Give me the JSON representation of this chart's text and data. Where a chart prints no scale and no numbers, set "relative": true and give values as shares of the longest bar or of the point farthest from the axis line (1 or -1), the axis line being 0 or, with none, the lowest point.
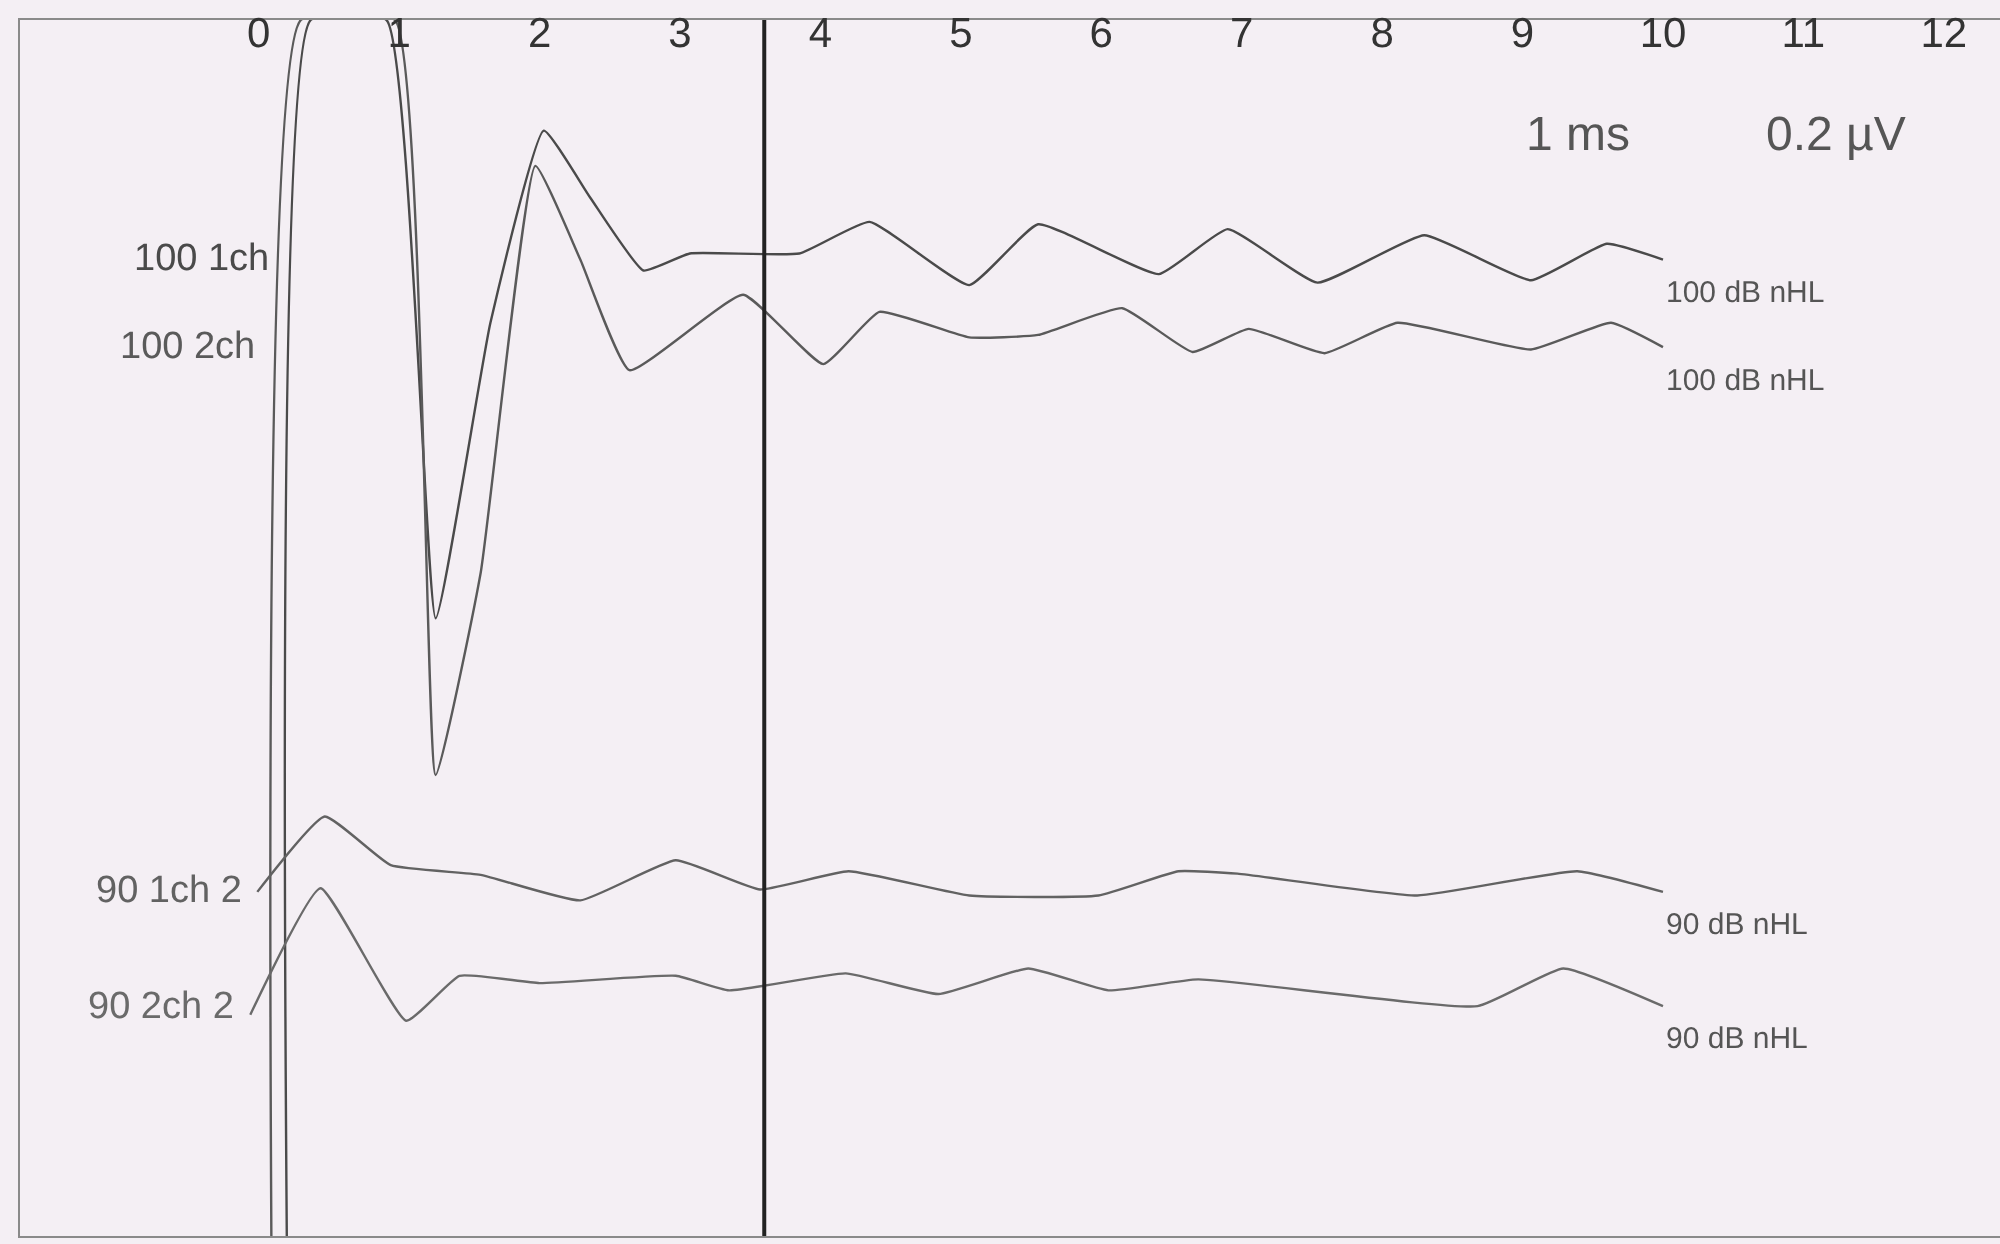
{
  "chart_data": {
    "type": "line",
    "relative": true,
    "xlim": [
      -1.7,
      12.4
    ],
    "xticks": [
      0,
      1,
      2,
      3,
      4,
      5,
      6,
      7,
      8,
      9,
      10,
      11,
      12
    ],
    "series": [
      {
        "name": "100 1ch",
        "color": "#4a4a4a",
        "x": [
          0.2,
          0.37,
          0.91,
          1.26,
          1.65,
          2.03,
          2.36,
          2.74,
          3.07,
          3.85,
          4.35,
          5.06,
          5.55,
          6.41,
          6.9,
          7.54,
          8.3,
          9.06,
          9.6,
          10.0
        ],
        "values": [
          0,
          1,
          1,
          0.508,
          0.751,
          0.909,
          0.854,
          0.794,
          0.808,
          0.808,
          0.834,
          0.782,
          0.832,
          0.791,
          0.828,
          0.784,
          0.823,
          0.786,
          0.816,
          0.803
        ]
      },
      {
        "name": "100 2ch",
        "color": "#5a5a5a",
        "x": [
          0.09,
          0.3,
          0.97,
          1.26,
          1.58,
          1.97,
          2.29,
          2.64,
          3.45,
          4.02,
          4.42,
          5.06,
          5.55,
          6.15,
          6.65,
          7.05,
          7.59,
          8.11,
          9.06,
          9.63,
          10.0
        ],
        "values": [
          0,
          1,
          1,
          0.379,
          0.545,
          0.88,
          0.803,
          0.712,
          0.774,
          0.717,
          0.76,
          0.739,
          0.741,
          0.763,
          0.727,
          0.746,
          0.726,
          0.751,
          0.729,
          0.751,
          0.731
        ]
      },
      {
        "name": "90 1ch 2",
        "color": "#626262",
        "x": [
          -0.01,
          0.47,
          0.94,
          1.58,
          2.29,
          2.97,
          3.57,
          4.2,
          5.06,
          5.98,
          6.55,
          6.97,
          8.25,
          9.39,
          10.0
        ],
        "values": [
          0.283,
          0.345,
          0.305,
          0.297,
          0.276,
          0.309,
          0.285,
          0.3,
          0.28,
          0.28,
          0.3,
          0.298,
          0.28,
          0.3,
          0.283
        ]
      },
      {
        "name": "90 2ch 2",
        "color": "#6a6a6a",
        "x": [
          -0.06,
          0.44,
          1.05,
          1.43,
          2.0,
          2.97,
          3.35,
          4.18,
          4.84,
          5.48,
          6.05,
          6.69,
          8.68,
          9.29,
          10.0
        ],
        "values": [
          0.182,
          0.286,
          0.177,
          0.214,
          0.208,
          0.214,
          0.202,
          0.216,
          0.199,
          0.22,
          0.202,
          0.211,
          0.189,
          0.22,
          0.189
        ]
      }
    ],
    "ref_lines": [
      {
        "axis": "x",
        "value": 3.6,
        "color": "#222222"
      }
    ],
    "annotations": [
      "1 ms",
      "0.2 µV",
      "100 dB nHL",
      "100 dB nHL",
      "90 dB nHL",
      "90 dB nHL"
    ]
  }
}
